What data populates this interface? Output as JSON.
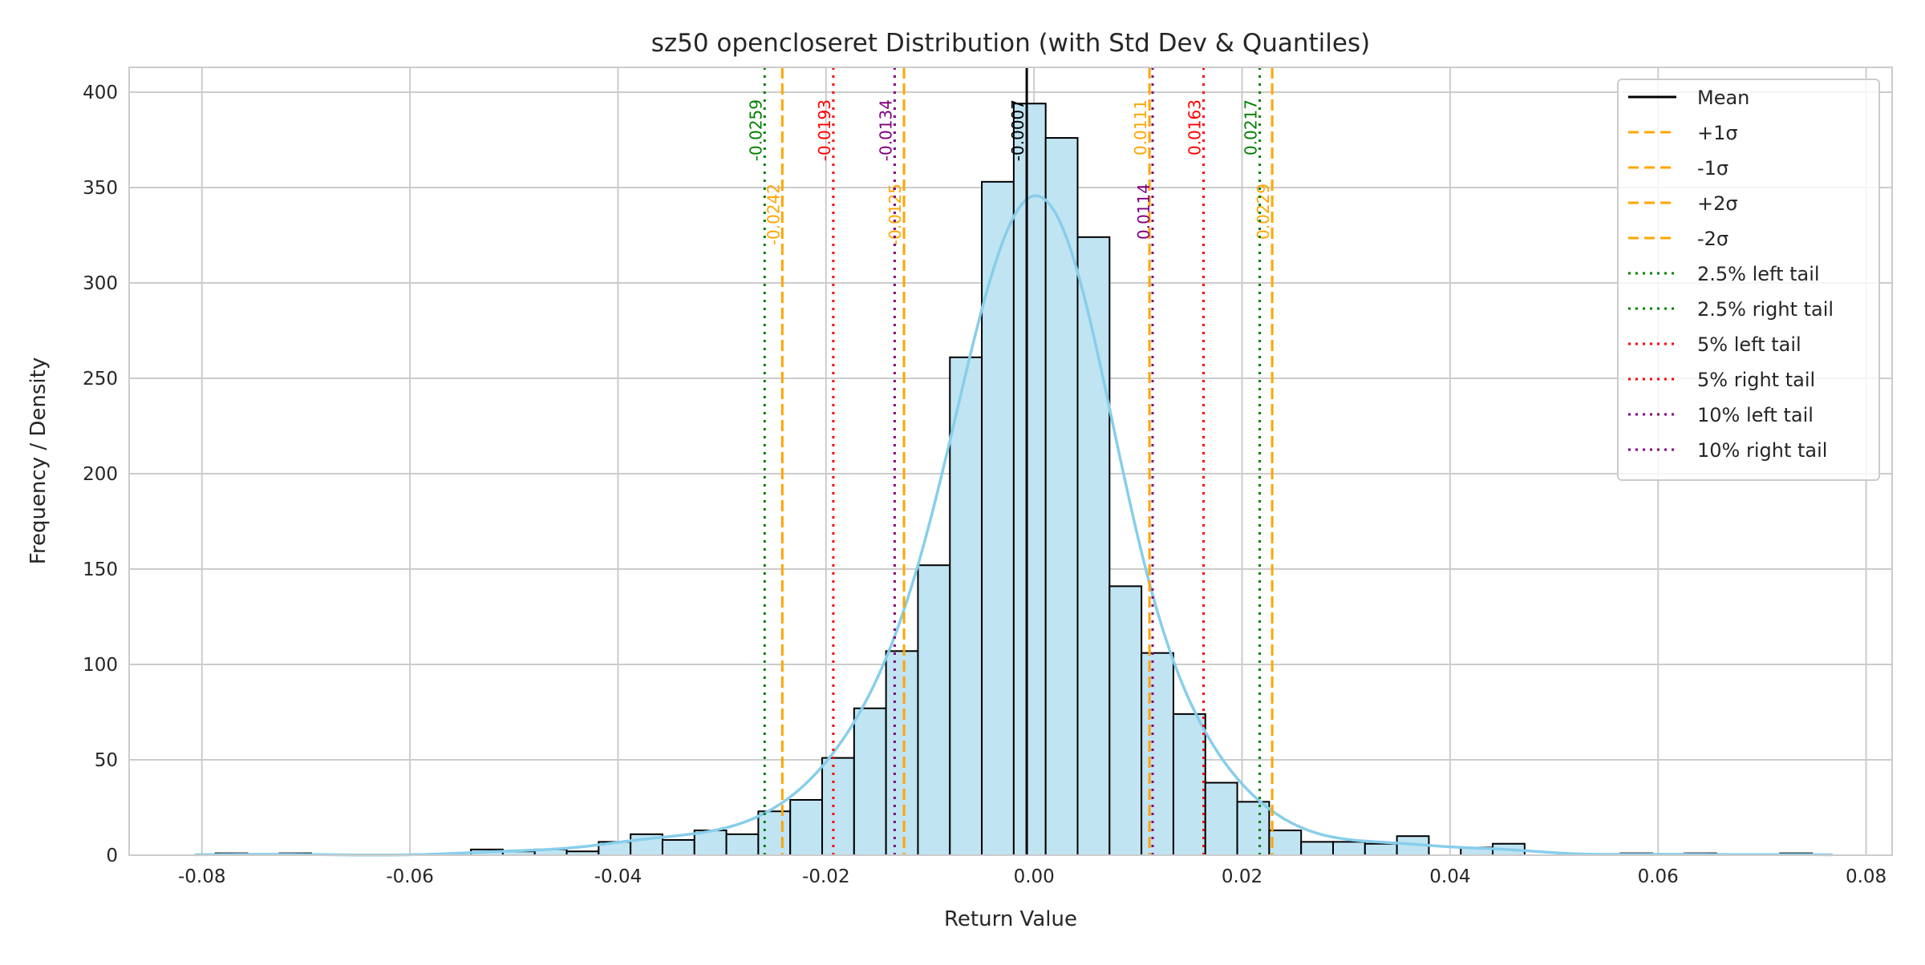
{
  "chart_data": {
    "type": "bar",
    "title": "sz50 opencloseret Distribution (with Std Dev & Quantiles)",
    "xlabel": "Return Value",
    "ylabel": "Frequency / Density",
    "xlim": [
      -0.087,
      0.0825
    ],
    "ylim": [
      0,
      413
    ],
    "xticks": [
      -0.08,
      -0.06,
      -0.04,
      -0.02,
      0.0,
      0.02,
      0.04,
      0.06,
      0.08
    ],
    "xtick_labels": [
      "-0.08",
      "-0.06",
      "-0.04",
      "-0.02",
      "0.00",
      "0.02",
      "0.04",
      "0.06",
      "0.08"
    ],
    "yticks": [
      0,
      50,
      100,
      150,
      200,
      250,
      300,
      350,
      400
    ],
    "ytick_labels": [
      "0",
      "50",
      "100",
      "150",
      "200",
      "250",
      "300",
      "350",
      "400"
    ],
    "grid": true,
    "bins": {
      "start": -0.0787,
      "width": 0.00307,
      "counts": [
        1,
        0,
        1,
        0,
        0,
        0,
        0,
        0,
        3,
        2,
        3,
        2,
        7,
        11,
        8,
        13,
        11,
        23,
        29,
        51,
        77,
        107,
        152,
        261,
        353,
        394,
        376,
        324,
        141,
        106,
        74,
        38,
        28,
        13,
        7,
        7,
        6,
        10,
        0,
        4,
        6,
        0,
        0,
        0,
        1,
        0,
        1,
        0,
        0,
        1
      ]
    },
    "kde": {
      "label": "KDE",
      "bandwidth": 0.0042,
      "color": "#87ceeb"
    },
    "bar_color": "#c0e4f2",
    "vlines": [
      {
        "name": "Mean",
        "value": -0.0007,
        "label": "-0.0007",
        "color": "#000000",
        "style": "solid"
      },
      {
        "name": "+1σ",
        "value": 0.0111,
        "label": "0.0111",
        "color": "#ffa500",
        "style": "dashed"
      },
      {
        "name": "-1σ",
        "value": -0.0125,
        "label": "-0.0125",
        "color": "#ffa500",
        "style": "dashed"
      },
      {
        "name": "+2σ",
        "value": 0.0229,
        "label": "0.0229",
        "color": "#ffa500",
        "style": "dashed"
      },
      {
        "name": "-2σ",
        "value": -0.0242,
        "label": "-0.0242",
        "color": "#ffa500",
        "style": "dashed"
      },
      {
        "name": "2.5% left tail",
        "value": -0.0259,
        "label": "-0.0259",
        "color": "#008000",
        "style": "dotted"
      },
      {
        "name": "2.5% right tail",
        "value": 0.0217,
        "label": "0.0217",
        "color": "#008000",
        "style": "dotted"
      },
      {
        "name": "5% left tail",
        "value": -0.0193,
        "label": "-0.0193",
        "color": "#ff0000",
        "style": "dotted"
      },
      {
        "name": "5% right tail",
        "value": 0.0163,
        "label": "0.0163",
        "color": "#ff0000",
        "style": "dotted"
      },
      {
        "name": "10% left tail",
        "value": -0.0134,
        "label": "-0.0134",
        "color": "#800080",
        "style": "dotted"
      },
      {
        "name": "10% right tail",
        "value": 0.0114,
        "label": "0.0114",
        "color": "#800080",
        "style": "dotted"
      }
    ],
    "legend_position": "top-right"
  }
}
